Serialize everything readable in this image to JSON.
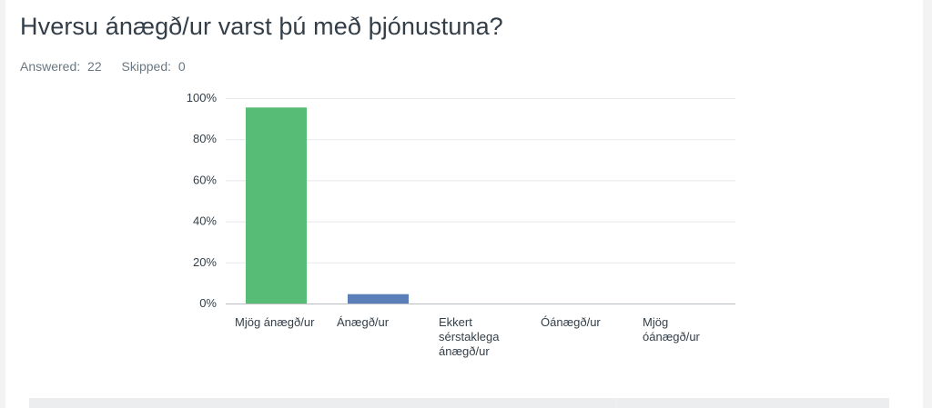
{
  "question": {
    "title": "Hversu ánægð/ur varst þú með þjónustuna?",
    "answered_label": "Answered:",
    "answered_value": "22",
    "skipped_label": "Skipped:",
    "skipped_value": "0"
  },
  "chart_data": {
    "type": "bar",
    "title": "",
    "xlabel": "",
    "ylabel": "",
    "categories": [
      "Mjög ánægð/ur",
      "Ánægð/ur",
      "Ekkert sérstaklega ánægð/ur",
      "Óánægð/ur",
      "Mjög óánægð/ur"
    ],
    "values": [
      95.45,
      4.55,
      0,
      0,
      0
    ],
    "ylim": [
      0,
      100
    ],
    "yticks": [
      "0%",
      "20%",
      "40%",
      "60%",
      "80%",
      "100%"
    ],
    "grid": true,
    "colors": [
      "#57bd76",
      "#5b7fb9",
      "#57bd76",
      "#57bd76",
      "#57bd76"
    ]
  }
}
